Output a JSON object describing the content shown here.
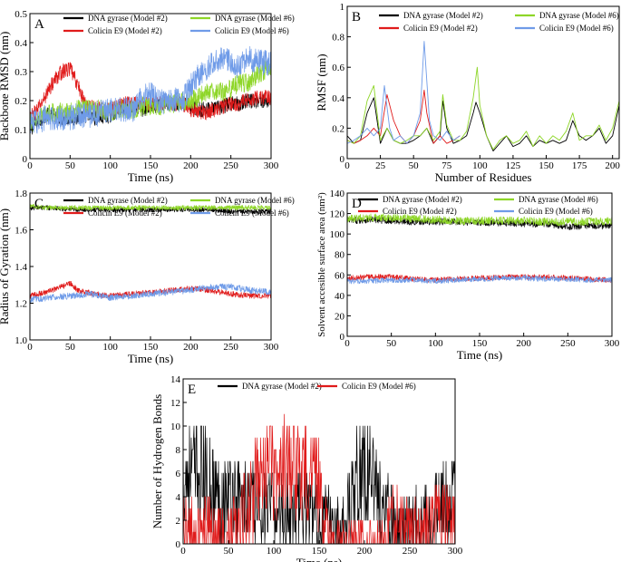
{
  "chart_data": [
    {
      "id": "A",
      "panel_label": "A",
      "type": "line",
      "xlabel": "Time (ns)",
      "ylabel": "Backbone RMSD (nm)",
      "xlim": [
        0,
        300
      ],
      "ylim": [
        0,
        0.5
      ],
      "xticks": [
        "0",
        "50",
        "100",
        "150",
        "200",
        "250",
        "300"
      ],
      "yticks": [
        "0",
        "0.1",
        "0.2",
        "0.3",
        "0.4",
        "0.5"
      ],
      "legend_position": "top",
      "series": [
        {
          "name": "DNA gyrase (Model #2)",
          "color": "#000000",
          "noise": 0.012,
          "x": [
            0,
            10,
            20,
            30,
            40,
            50,
            60,
            70,
            80,
            90,
            100,
            110,
            120,
            130,
            140,
            150,
            160,
            170,
            180,
            190,
            200,
            210,
            220,
            230,
            240,
            250,
            260,
            270,
            280,
            290,
            300
          ],
          "y": [
            0.1,
            0.13,
            0.15,
            0.15,
            0.14,
            0.14,
            0.14,
            0.15,
            0.14,
            0.14,
            0.15,
            0.17,
            0.18,
            0.18,
            0.17,
            0.18,
            0.18,
            0.19,
            0.19,
            0.19,
            0.18,
            0.17,
            0.17,
            0.17,
            0.18,
            0.19,
            0.19,
            0.2,
            0.2,
            0.2,
            0.2
          ]
        },
        {
          "name": "Colicin E9 (Model #2)",
          "color": "#e01b1b",
          "noise": 0.012,
          "x": [
            0,
            10,
            20,
            30,
            40,
            50,
            60,
            70,
            80,
            90,
            100,
            110,
            120,
            130,
            140,
            150,
            160,
            170,
            180,
            190,
            200,
            210,
            220,
            230,
            240,
            250,
            260,
            270,
            280,
            290,
            300
          ],
          "y": [
            0.14,
            0.17,
            0.22,
            0.27,
            0.3,
            0.31,
            0.25,
            0.18,
            0.18,
            0.17,
            0.17,
            0.18,
            0.19,
            0.19,
            0.19,
            0.19,
            0.19,
            0.2,
            0.19,
            0.19,
            0.17,
            0.16,
            0.16,
            0.17,
            0.18,
            0.19,
            0.19,
            0.2,
            0.21,
            0.21,
            0.21
          ]
        },
        {
          "name": "DNA gyrase (Model #6)",
          "color": "#8ed628",
          "noise": 0.015,
          "x": [
            0,
            10,
            20,
            30,
            40,
            50,
            60,
            70,
            80,
            90,
            100,
            110,
            120,
            130,
            140,
            150,
            160,
            170,
            180,
            190,
            200,
            210,
            220,
            230,
            240,
            250,
            260,
            270,
            280,
            290,
            300
          ],
          "y": [
            0.12,
            0.14,
            0.16,
            0.16,
            0.16,
            0.16,
            0.17,
            0.17,
            0.17,
            0.17,
            0.16,
            0.17,
            0.17,
            0.17,
            0.18,
            0.18,
            0.18,
            0.19,
            0.19,
            0.2,
            0.2,
            0.21,
            0.23,
            0.23,
            0.23,
            0.24,
            0.26,
            0.26,
            0.28,
            0.3,
            0.32
          ]
        },
        {
          "name": "Colicin E9 (Model #6)",
          "color": "#6f9be8",
          "noise": 0.02,
          "x": [
            0,
            10,
            20,
            30,
            40,
            50,
            60,
            70,
            80,
            90,
            100,
            110,
            120,
            130,
            140,
            150,
            160,
            170,
            180,
            190,
            200,
            210,
            220,
            230,
            240,
            250,
            260,
            270,
            280,
            290,
            300
          ],
          "y": [
            0.12,
            0.13,
            0.14,
            0.14,
            0.14,
            0.14,
            0.15,
            0.15,
            0.15,
            0.16,
            0.17,
            0.17,
            0.17,
            0.17,
            0.22,
            0.22,
            0.2,
            0.19,
            0.2,
            0.2,
            0.25,
            0.29,
            0.31,
            0.33,
            0.35,
            0.33,
            0.32,
            0.35,
            0.34,
            0.33,
            0.33
          ]
        }
      ]
    },
    {
      "id": "B",
      "panel_label": "B",
      "type": "line",
      "xlabel": "Number of Residues",
      "ylabel": "RMSF (nm)",
      "xlim": [
        0,
        205
      ],
      "ylim": [
        0,
        1.0
      ],
      "xticks": [
        "0",
        "25",
        "50",
        "75",
        "100",
        "125",
        "150",
        "175",
        "200"
      ],
      "yticks": [
        "0",
        "0.2",
        "0.4",
        "0.6",
        "0.8",
        "1"
      ],
      "legend_position": "top",
      "series": [
        {
          "name": "DNA gyrase (Model #2)",
          "color": "#000000",
          "noise": 0,
          "x": [
            0,
            5,
            10,
            15,
            20,
            25,
            30,
            35,
            40,
            45,
            50,
            55,
            60,
            65,
            70,
            72,
            75,
            80,
            85,
            90,
            95,
            97,
            100,
            105,
            110,
            115,
            120,
            125,
            130,
            135,
            140,
            145,
            150,
            155,
            160,
            165,
            170,
            175,
            180,
            185,
            190,
            195,
            200,
            205
          ],
          "y": [
            0.15,
            0.1,
            0.12,
            0.3,
            0.4,
            0.1,
            0.2,
            0.12,
            0.1,
            0.1,
            0.12,
            0.15,
            0.2,
            0.1,
            0.15,
            0.38,
            0.2,
            0.1,
            0.12,
            0.15,
            0.3,
            0.37,
            0.3,
            0.15,
            0.05,
            0.1,
            0.15,
            0.08,
            0.1,
            0.15,
            0.08,
            0.12,
            0.1,
            0.12,
            0.1,
            0.12,
            0.25,
            0.15,
            0.12,
            0.15,
            0.2,
            0.1,
            0.15,
            0.35
          ]
        },
        {
          "name": "Colicin E9 (Model #2)",
          "color": "#e01b1b",
          "noise": 0,
          "x": [
            0,
            5,
            10,
            15,
            20,
            25,
            30,
            35,
            40,
            45,
            50,
            55,
            58,
            60,
            65,
            70,
            75,
            80,
            85
          ],
          "y": [
            0.12,
            0.1,
            0.12,
            0.15,
            0.2,
            0.15,
            0.42,
            0.25,
            0.15,
            0.1,
            0.15,
            0.25,
            0.45,
            0.3,
            0.1,
            0.15,
            0.1,
            0.12,
            0.15
          ]
        },
        {
          "name": "DNA gyrase (Model #6)",
          "color": "#8ed628",
          "noise": 0,
          "x": [
            0,
            5,
            10,
            15,
            20,
            25,
            30,
            35,
            40,
            45,
            50,
            55,
            60,
            65,
            70,
            72,
            75,
            80,
            85,
            90,
            95,
            98,
            100,
            105,
            110,
            115,
            120,
            125,
            130,
            135,
            140,
            145,
            150,
            155,
            160,
            165,
            170,
            175,
            180,
            185,
            190,
            195,
            200,
            205
          ],
          "y": [
            0.12,
            0.1,
            0.15,
            0.38,
            0.48,
            0.12,
            0.2,
            0.12,
            0.1,
            0.12,
            0.15,
            0.15,
            0.2,
            0.12,
            0.18,
            0.42,
            0.22,
            0.12,
            0.12,
            0.18,
            0.4,
            0.6,
            0.35,
            0.15,
            0.06,
            0.12,
            0.15,
            0.1,
            0.12,
            0.18,
            0.08,
            0.15,
            0.1,
            0.15,
            0.12,
            0.18,
            0.3,
            0.12,
            0.15,
            0.15,
            0.22,
            0.12,
            0.2,
            0.38
          ]
        },
        {
          "name": "Colicin E9 (Model #6)",
          "color": "#6f9be8",
          "noise": 0,
          "x": [
            0,
            5,
            10,
            15,
            20,
            25,
            28,
            32,
            35,
            40,
            45,
            50,
            55,
            58,
            62,
            65,
            70,
            75,
            80,
            85
          ],
          "y": [
            0.1,
            0.12,
            0.15,
            0.2,
            0.15,
            0.2,
            0.48,
            0.2,
            0.12,
            0.15,
            0.1,
            0.15,
            0.3,
            0.77,
            0.25,
            0.15,
            0.12,
            0.18,
            0.12,
            0.15
          ]
        }
      ]
    },
    {
      "id": "C",
      "panel_label": "C",
      "type": "line",
      "xlabel": "Time (ns)",
      "ylabel": "Radius of Gyration (nm)",
      "xlim": [
        0,
        300
      ],
      "ylim": [
        1.0,
        1.8
      ],
      "xticks": [
        "0",
        "50",
        "100",
        "150",
        "200",
        "250",
        "300"
      ],
      "yticks": [
        "1.0",
        "1.2",
        "1.4",
        "1.6",
        "1.8"
      ],
      "legend_position": "top",
      "series": [
        {
          "name": "DNA gyrase (Model #2)",
          "color": "#000000",
          "noise": 0.006,
          "x": [
            0,
            25,
            50,
            75,
            100,
            125,
            150,
            175,
            200,
            225,
            250,
            275,
            300
          ],
          "y": [
            1.72,
            1.72,
            1.71,
            1.71,
            1.71,
            1.71,
            1.71,
            1.71,
            1.71,
            1.71,
            1.7,
            1.7,
            1.7
          ]
        },
        {
          "name": "Colicin E9 (Model #2)",
          "color": "#e01b1b",
          "noise": 0.007,
          "x": [
            0,
            20,
            40,
            50,
            60,
            80,
            100,
            125,
            150,
            175,
            200,
            225,
            250,
            275,
            300
          ],
          "y": [
            1.24,
            1.26,
            1.29,
            1.31,
            1.27,
            1.25,
            1.24,
            1.25,
            1.26,
            1.27,
            1.28,
            1.27,
            1.25,
            1.24,
            1.24
          ]
        },
        {
          "name": "DNA gyrase (Model #6)",
          "color": "#8ed628",
          "noise": 0.006,
          "x": [
            0,
            25,
            50,
            75,
            100,
            125,
            150,
            175,
            200,
            225,
            250,
            275,
            300
          ],
          "y": [
            1.73,
            1.72,
            1.72,
            1.72,
            1.72,
            1.72,
            1.72,
            1.72,
            1.72,
            1.72,
            1.72,
            1.72,
            1.72
          ]
        },
        {
          "name": "Colicin E9 (Model #6)",
          "color": "#6f9be8",
          "noise": 0.008,
          "x": [
            0,
            25,
            50,
            75,
            100,
            125,
            150,
            175,
            200,
            225,
            250,
            275,
            300
          ],
          "y": [
            1.22,
            1.23,
            1.24,
            1.25,
            1.23,
            1.24,
            1.25,
            1.26,
            1.27,
            1.29,
            1.29,
            1.27,
            1.26
          ]
        }
      ]
    },
    {
      "id": "D",
      "panel_label": "D",
      "type": "line",
      "xlabel": "Time (ns)",
      "ylabel": "Solvent accesible surface area (nm²)",
      "xlim": [
        0,
        300
      ],
      "ylim": [
        0,
        140
      ],
      "xticks": [
        "0",
        "50",
        "100",
        "150",
        "200",
        "250",
        "300"
      ],
      "yticks": [
        "0",
        "20",
        "40",
        "60",
        "80",
        "100",
        "120",
        "140"
      ],
      "legend_position": "top",
      "series": [
        {
          "name": "DNA gyrase (Model #2)",
          "color": "#000000",
          "noise": 1.5,
          "x": [
            0,
            25,
            50,
            75,
            100,
            125,
            150,
            175,
            200,
            225,
            250,
            275,
            300
          ],
          "y": [
            113,
            114,
            113,
            112,
            112,
            112,
            111,
            111,
            110,
            110,
            107,
            108,
            108
          ]
        },
        {
          "name": "Colicin E9 (Model #2)",
          "color": "#e01b1b",
          "noise": 1.2,
          "x": [
            0,
            25,
            50,
            75,
            100,
            125,
            150,
            175,
            200,
            225,
            250,
            275,
            300
          ],
          "y": [
            57,
            58,
            58,
            56,
            55,
            56,
            57,
            58,
            58,
            58,
            57,
            56,
            55
          ]
        },
        {
          "name": "DNA gyrase (Model #6)",
          "color": "#8ed628",
          "noise": 1.8,
          "x": [
            0,
            25,
            50,
            75,
            100,
            125,
            150,
            175,
            200,
            225,
            250,
            275,
            300
          ],
          "y": [
            115,
            116,
            116,
            115,
            114,
            113,
            113,
            113,
            113,
            112,
            112,
            112,
            113
          ]
        },
        {
          "name": "Colicin E9 (Model #6)",
          "color": "#6f9be8",
          "noise": 1.2,
          "x": [
            0,
            25,
            50,
            75,
            100,
            125,
            150,
            175,
            200,
            225,
            250,
            275,
            300
          ],
          "y": [
            54,
            54,
            55,
            55,
            54,
            55,
            56,
            57,
            57,
            56,
            56,
            55,
            55
          ]
        }
      ]
    },
    {
      "id": "E",
      "panel_label": "E",
      "type": "line",
      "xlabel": "Time (ns)",
      "ylabel": "Number of Hydrogen Bonds",
      "xlim": [
        0,
        300
      ],
      "ylim": [
        0,
        14
      ],
      "xticks": [
        "0",
        "50",
        "100",
        "150",
        "200",
        "250",
        "300"
      ],
      "yticks": [
        "0",
        "2",
        "4",
        "6",
        "8",
        "10",
        "12",
        "14"
      ],
      "legend_position": "top",
      "series": [
        {
          "name": "DNA gyrase (Model #2)",
          "color": "#000000",
          "noise": 0,
          "x": [
            0,
            20,
            40,
            60,
            80,
            100,
            120,
            140,
            150,
            160,
            170,
            180,
            190,
            200,
            210,
            220,
            240,
            260,
            280,
            300
          ],
          "y": [
            6,
            6,
            4,
            4,
            3,
            3,
            3,
            3,
            2,
            2,
            1,
            2,
            6,
            6,
            6,
            3,
            1,
            2,
            3,
            4
          ]
        },
        {
          "name": "Colicin E9 (Model #6)",
          "color": "#e01b1b",
          "noise": 0,
          "x": [
            0,
            20,
            40,
            60,
            80,
            90,
            100,
            120,
            140,
            150,
            160,
            220,
            230,
            260,
            280,
            300
          ],
          "y": [
            1,
            1,
            1,
            1,
            5,
            6,
            6,
            6,
            6,
            5,
            0,
            0,
            2,
            1,
            2,
            2
          ]
        }
      ]
    }
  ]
}
